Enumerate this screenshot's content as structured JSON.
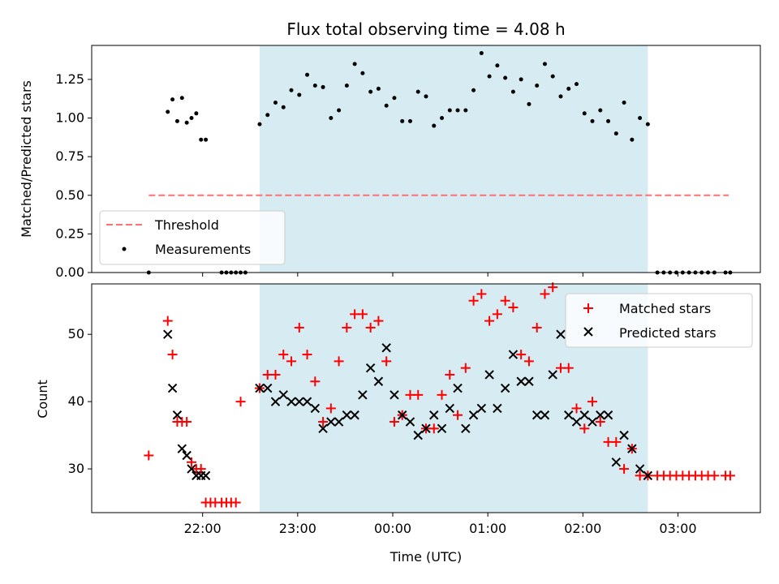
{
  "chart_data": {
    "type": "scatter",
    "title": "Flux total observing time = 4.08 h",
    "xlabel": "Time (UTC)",
    "x_tick_labels": [
      "22:00",
      "23:00",
      "00:00",
      "01:00",
      "02:00",
      "03:00"
    ],
    "shaded_interval": {
      "start": "22:36",
      "end": "02:41",
      "color": "#add8e6"
    },
    "top_panel": {
      "ylabel": "Matched/Predicted stars",
      "ylim": [
        0,
        1.47
      ],
      "y_tick_labels": [
        "0.00",
        "0.25",
        "0.50",
        "0.75",
        "1.00",
        "1.25"
      ],
      "threshold": {
        "name": "Threshold",
        "value": 0.5,
        "color": "#ff6f6f",
        "x_range": [
          "21:26",
          "03:32"
        ]
      },
      "measurements": {
        "name": "Measurements",
        "color": "#000000",
        "x": [
          "21:26",
          "21:38",
          "21:41",
          "21:44",
          "21:47",
          "21:50",
          "21:53",
          "21:56",
          "21:59",
          "22:02",
          "22:12",
          "22:15",
          "22:18",
          "22:21",
          "22:24",
          "22:27",
          "22:36",
          "22:41",
          "22:46",
          "22:51",
          "22:56",
          "23:01",
          "23:06",
          "23:11",
          "23:16",
          "23:21",
          "23:26",
          "23:31",
          "23:36",
          "23:41",
          "23:46",
          "23:51",
          "23:56",
          "00:01",
          "00:06",
          "00:11",
          "00:16",
          "00:21",
          "00:26",
          "00:31",
          "00:36",
          "00:41",
          "00:46",
          "00:51",
          "00:56",
          "01:01",
          "01:06",
          "01:11",
          "01:16",
          "01:21",
          "01:26",
          "01:31",
          "01:36",
          "01:41",
          "01:46",
          "01:51",
          "01:56",
          "02:01",
          "02:06",
          "02:11",
          "02:16",
          "02:21",
          "02:26",
          "02:31",
          "02:36",
          "02:41",
          "02:47",
          "02:51",
          "02:55",
          "02:59",
          "03:03",
          "03:07",
          "03:11",
          "03:15",
          "03:19",
          "03:23",
          "03:30",
          "03:33"
        ],
        "y": [
          0.0,
          1.04,
          1.12,
          0.98,
          1.13,
          0.97,
          1.0,
          1.03,
          0.86,
          0.86,
          0.0,
          0.0,
          0.0,
          0.0,
          0.0,
          0.0,
          0.96,
          1.02,
          1.1,
          1.07,
          1.18,
          1.15,
          1.28,
          1.21,
          1.2,
          1.0,
          1.05,
          1.21,
          1.35,
          1.29,
          1.17,
          1.19,
          1.08,
          1.13,
          0.98,
          0.98,
          1.17,
          1.14,
          0.95,
          1.0,
          1.05,
          1.05,
          1.05,
          1.18,
          1.42,
          1.27,
          1.34,
          1.26,
          1.17,
          1.25,
          1.09,
          1.21,
          1.35,
          1.27,
          1.14,
          1.19,
          1.22,
          1.03,
          0.98,
          1.05,
          0.98,
          0.9,
          1.1,
          0.86,
          1.0,
          0.96,
          0.0,
          0.0,
          0.0,
          0.0,
          0.0,
          0.0,
          0.0,
          0.0,
          0.0,
          0.0,
          0.0,
          0.0
        ]
      }
    },
    "bottom_panel": {
      "ylabel": "Count",
      "ylim": [
        23.5,
        57.5
      ],
      "y_tick_labels": [
        "30",
        "40",
        "50"
      ],
      "series": [
        {
          "name": "Matched stars",
          "marker": "+",
          "color": "#ff0000",
          "x": [
            "21:26",
            "21:38",
            "21:41",
            "21:44",
            "21:47",
            "21:50",
            "21:53",
            "21:56",
            "21:59",
            "22:02",
            "22:05",
            "22:08",
            "22:12",
            "22:15",
            "22:18",
            "22:21",
            "22:24",
            "22:36",
            "22:41",
            "22:46",
            "22:51",
            "22:56",
            "23:01",
            "23:06",
            "23:11",
            "23:16",
            "23:21",
            "23:26",
            "23:31",
            "23:36",
            "23:41",
            "23:46",
            "23:51",
            "23:56",
            "00:01",
            "00:06",
            "00:11",
            "00:16",
            "00:21",
            "00:26",
            "00:31",
            "00:36",
            "00:41",
            "00:46",
            "00:51",
            "00:56",
            "01:01",
            "01:06",
            "01:11",
            "01:16",
            "01:21",
            "01:26",
            "01:31",
            "01:36",
            "01:41",
            "01:46",
            "01:51",
            "01:56",
            "02:01",
            "02:06",
            "02:11",
            "02:16",
            "02:21",
            "02:26",
            "02:31",
            "02:36",
            "02:41",
            "02:47",
            "02:51",
            "02:55",
            "02:59",
            "03:03",
            "03:07",
            "03:11",
            "03:15",
            "03:19",
            "03:23",
            "03:30",
            "03:33"
          ],
          "y": [
            32,
            52,
            47,
            37,
            37,
            37,
            31,
            30,
            30,
            25,
            25,
            25,
            25,
            25,
            25,
            25,
            40,
            42,
            44,
            44,
            47,
            46,
            51,
            47,
            43,
            37,
            39,
            46,
            51,
            53,
            53,
            51,
            52,
            46,
            37,
            38,
            41,
            41,
            36,
            36,
            41,
            44,
            38,
            45,
            55,
            56,
            52,
            53,
            55,
            54,
            47,
            46,
            51,
            56,
            57,
            45,
            45,
            39,
            36,
            40,
            37,
            34,
            34,
            30,
            33,
            29,
            29,
            29,
            29,
            29,
            29,
            29,
            29,
            29,
            29,
            29,
            29,
            29,
            29
          ]
        },
        {
          "name": "Predicted stars",
          "marker": "x",
          "color": "#000000",
          "x": [
            "21:38",
            "21:41",
            "21:44",
            "21:47",
            "21:50",
            "21:53",
            "21:56",
            "21:59",
            "22:02",
            "22:36",
            "22:41",
            "22:46",
            "22:51",
            "22:56",
            "23:01",
            "23:06",
            "23:11",
            "23:16",
            "23:21",
            "23:26",
            "23:31",
            "23:36",
            "23:41",
            "23:46",
            "23:51",
            "23:56",
            "00:01",
            "00:06",
            "00:11",
            "00:16",
            "00:21",
            "00:26",
            "00:31",
            "00:36",
            "00:41",
            "00:46",
            "00:51",
            "00:56",
            "01:01",
            "01:06",
            "01:11",
            "01:16",
            "01:21",
            "01:26",
            "01:31",
            "01:36",
            "01:41",
            "01:46",
            "01:51",
            "01:56",
            "02:01",
            "02:06",
            "02:11",
            "02:16",
            "02:21",
            "02:26",
            "02:31",
            "02:36",
            "02:41"
          ],
          "y": [
            50,
            42,
            38,
            33,
            32,
            30,
            29,
            29,
            29,
            42,
            42,
            40,
            41,
            40,
            40,
            40,
            39,
            36,
            37,
            37,
            38,
            38,
            41,
            45,
            43,
            48,
            41,
            38,
            37,
            35,
            36,
            38,
            36,
            39,
            42,
            36,
            38,
            39,
            44,
            39,
            42,
            47,
            43,
            43,
            38,
            38,
            44,
            50,
            38,
            37,
            38,
            37,
            38,
            38,
            31,
            35,
            33,
            30,
            29
          ]
        }
      ]
    },
    "legend_top": [
      {
        "name": "Threshold"
      },
      {
        "name": "Measurements"
      }
    ],
    "legend_bottom": [
      {
        "name": "Matched stars"
      },
      {
        "name": "Predicted stars"
      }
    ]
  }
}
